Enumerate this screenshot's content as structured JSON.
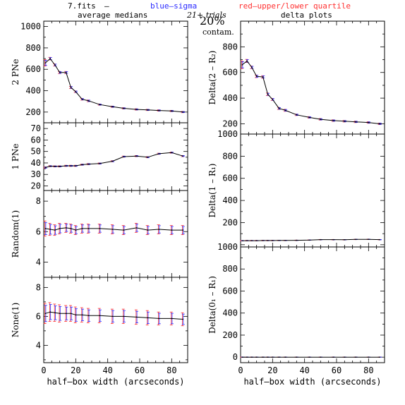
{
  "header": {
    "file": "7.fits",
    "dash": "–",
    "blue_label": "blue–sigma",
    "red_label": "red–upper/lower quartile",
    "left_title": "average medians",
    "right_title": "delta plots",
    "trials": "21+ trials",
    "contam_pct": "20%",
    "contam_label": "contam.",
    "colors": {
      "blue": "#2b2bff",
      "red": "#ff3030",
      "line": "#000000"
    }
  },
  "chart_data": [
    {
      "type": "line",
      "panel": "left-1",
      "ylabel": "2 PNe",
      "xlim": [
        0,
        90
      ],
      "ylim": [
        100,
        1050
      ],
      "yticks": [
        200,
        400,
        600,
        800,
        1000
      ],
      "x": [
        1,
        4,
        7,
        10,
        14,
        17,
        20,
        24,
        28,
        35,
        43,
        50,
        58,
        65,
        72,
        80,
        87
      ],
      "y": [
        660,
        700,
        640,
        570,
        570,
        430,
        390,
        320,
        305,
        270,
        250,
        235,
        225,
        220,
        215,
        210,
        200
      ],
      "err": [
        30,
        12,
        10,
        10,
        10,
        10,
        8,
        8,
        8,
        6,
        6,
        6,
        6,
        6,
        6,
        6,
        6
      ]
    },
    {
      "type": "line",
      "panel": "left-2",
      "ylabel": "1 PNe",
      "xlim": [
        0,
        90
      ],
      "ylim": [
        16,
        75
      ],
      "yticks": [
        20,
        30,
        40,
        50,
        60,
        70
      ],
      "x": [
        1,
        4,
        7,
        10,
        14,
        17,
        20,
        24,
        28,
        35,
        43,
        50,
        58,
        65,
        72,
        80,
        87
      ],
      "y": [
        36,
        37.2,
        37,
        37,
        37.5,
        37.5,
        37.5,
        38.5,
        39,
        39.5,
        41.5,
        45.5,
        46,
        45,
        48,
        49,
        46
      ],
      "err": [
        0.6,
        0.5,
        0.5,
        0.5,
        0.5,
        0.5,
        0.5,
        0.5,
        0.5,
        0.5,
        0.5,
        0.5,
        0.5,
        0.5,
        0.5,
        0.5,
        0.5
      ]
    },
    {
      "type": "line",
      "panel": "left-3",
      "ylabel": "Random(1)",
      "xlim": [
        0,
        90
      ],
      "ylim": [
        3,
        8.7
      ],
      "yticks": [
        4,
        6,
        8
      ],
      "x": [
        1,
        4,
        7,
        10,
        14,
        17,
        20,
        24,
        28,
        35,
        43,
        50,
        58,
        65,
        72,
        80,
        87
      ],
      "y": [
        6.2,
        6.15,
        6.1,
        6.2,
        6.25,
        6.2,
        6.1,
        6.2,
        6.2,
        6.2,
        6.15,
        6.1,
        6.25,
        6.1,
        6.15,
        6.1,
        6.1
      ],
      "err": [
        0.5,
        0.4,
        0.35,
        0.35,
        0.3,
        0.3,
        0.3,
        0.3,
        0.3,
        0.3,
        0.3,
        0.3,
        0.3,
        0.3,
        0.3,
        0.3,
        0.3
      ]
    },
    {
      "type": "line",
      "panel": "left-4",
      "ylabel": "None(1)",
      "xlabel": "half–box width (arcseconds)",
      "xlim": [
        0,
        90
      ],
      "ylim": [
        2.8,
        8.7
      ],
      "yticks": [
        4,
        6,
        8
      ],
      "xticks": [
        0,
        20,
        40,
        60,
        80
      ],
      "x": [
        1,
        4,
        7,
        10,
        14,
        17,
        20,
        24,
        28,
        35,
        43,
        50,
        58,
        65,
        72,
        80,
        87
      ],
      "y": [
        6.2,
        6.3,
        6.25,
        6.2,
        6.2,
        6.2,
        6.1,
        6.1,
        6.05,
        6.05,
        6.0,
        6.0,
        5.95,
        5.9,
        5.85,
        5.85,
        5.8
      ],
      "err": [
        0.7,
        0.65,
        0.6,
        0.6,
        0.55,
        0.55,
        0.55,
        0.5,
        0.5,
        0.5,
        0.5,
        0.5,
        0.5,
        0.5,
        0.45,
        0.45,
        0.45
      ]
    },
    {
      "type": "line",
      "panel": "right-1",
      "ylabel": "Delta(2 – R₂)",
      "xlim": [
        0,
        90
      ],
      "ylim": [
        120,
        1000
      ],
      "yticks": [
        200,
        400,
        600,
        800
      ],
      "x": [
        1,
        4,
        7,
        10,
        14,
        17,
        20,
        24,
        28,
        35,
        43,
        50,
        58,
        65,
        72,
        80,
        87
      ],
      "y": [
        660,
        690,
        640,
        570,
        565,
        430,
        390,
        320,
        305,
        270,
        250,
        235,
        225,
        220,
        215,
        210,
        200
      ],
      "err": [
        30,
        12,
        10,
        10,
        10,
        10,
        8,
        8,
        8,
        6,
        6,
        6,
        6,
        6,
        6,
        6,
        6
      ]
    },
    {
      "type": "line",
      "panel": "right-2",
      "ylabel": "Delta(1 – R₁)",
      "xlim": [
        0,
        90
      ],
      "ylim": [
        -20,
        1000
      ],
      "yticks": [
        200,
        400,
        600,
        800,
        1000
      ],
      "x": [
        1,
        4,
        7,
        10,
        14,
        17,
        20,
        24,
        28,
        35,
        43,
        50,
        58,
        65,
        72,
        80,
        87
      ],
      "y": [
        36,
        37,
        37,
        37,
        38,
        38,
        38,
        39,
        39,
        40,
        42,
        46,
        46,
        45,
        48,
        49,
        46
      ],
      "err": [
        2,
        2,
        2,
        2,
        2,
        2,
        2,
        2,
        2,
        2,
        2,
        2,
        2,
        2,
        2,
        2,
        2
      ]
    },
    {
      "type": "line",
      "panel": "right-3",
      "ylabel": "Delta(0₁ – R₁)",
      "xlabel": "half–box width (arcseconds)",
      "xlim": [
        0,
        90
      ],
      "ylim": [
        -50,
        1000
      ],
      "yticks": [
        0,
        200,
        400,
        600,
        800,
        1000
      ],
      "xticks": [
        0,
        20,
        40,
        60,
        80
      ],
      "x": [
        1,
        4,
        7,
        10,
        14,
        17,
        20,
        24,
        28,
        35,
        43,
        50,
        58,
        65,
        72,
        80,
        87
      ],
      "y": [
        0,
        0,
        0,
        0,
        0,
        0,
        0,
        0,
        0,
        0,
        0,
        0,
        0,
        0,
        0,
        0,
        0
      ],
      "err": [
        1,
        1,
        1,
        1,
        1,
        1,
        1,
        1,
        1,
        1,
        1,
        1,
        1,
        1,
        1,
        1,
        1
      ]
    }
  ]
}
